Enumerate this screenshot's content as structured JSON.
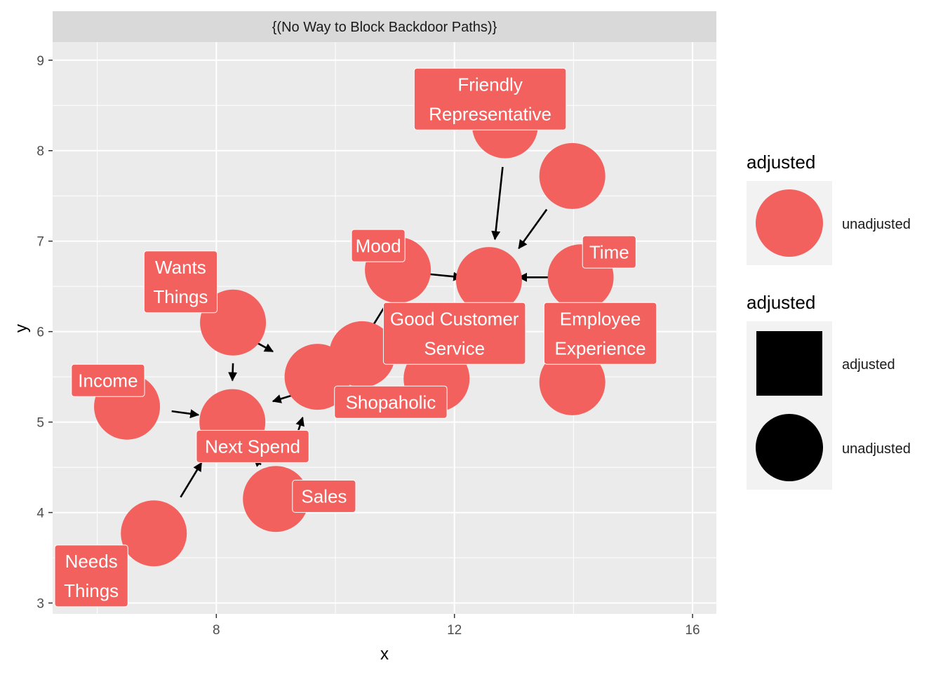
{
  "facet_title": "{(No Way to Block Backdoor Paths)}",
  "axes": {
    "xlabel": "x",
    "ylabel": "y",
    "x_range": [
      5.25,
      16.4
    ],
    "y_range": [
      2.88,
      9.2
    ],
    "x_ticks": [
      8,
      12,
      16
    ],
    "y_ticks": [
      3,
      4,
      5,
      6,
      7,
      8,
      9
    ],
    "x_minor": [
      6,
      10,
      14
    ],
    "y_minor": [
      3.5,
      4.5,
      5.5,
      6.5,
      7.5,
      8.5
    ],
    "grid": true
  },
  "colors": {
    "node": "#F2615E",
    "panel": "#EBEBEB",
    "strip": "#D9D9D9",
    "label_text": "#FFFFFF",
    "edge": "#000000"
  },
  "nodes": [
    {
      "id": "friendly",
      "label": "Friendly\nRepresentative",
      "x": 12.85,
      "y": 8.28
    },
    {
      "id": "employee",
      "label": "Employee\nExperience",
      "x": 13.98,
      "y": 7.72
    },
    {
      "id": "mood",
      "label": "Mood",
      "x": 11.05,
      "y": 6.68
    },
    {
      "id": "time",
      "label": "Time",
      "x": 14.12,
      "y": 6.6
    },
    {
      "id": "good",
      "label": "Good Customer\nService",
      "x": 12.58,
      "y": 6.57
    },
    {
      "id": "wants",
      "label": "Wants\nThings",
      "x": 8.28,
      "y": 6.1
    },
    {
      "id": "shopaholic",
      "label": "Shopaholic",
      "x": 10.45,
      "y": 5.75
    },
    {
      "id": "sales",
      "label": "Sales",
      "x": 9.7,
      "y": 5.5
    },
    {
      "id": "income",
      "label": "Income",
      "x": 6.5,
      "y": 5.17
    },
    {
      "id": "nextspend",
      "label": "Next Spend",
      "x": 8.27,
      "y": 5.0
    },
    {
      "id": "needs",
      "label": "Needs\nThings",
      "x": 6.95,
      "y": 3.77
    },
    {
      "id": "extra1",
      "label": "",
      "x": 11.7,
      "y": 5.48
    },
    {
      "id": "extra2",
      "label": "",
      "x": 13.98,
      "y": 5.44
    },
    {
      "id": "extra3",
      "label": "",
      "x": 9.0,
      "y": 4.15
    }
  ],
  "labels": [
    {
      "text": "Friendly\nRepresentative",
      "x": 12.6,
      "y": 8.57
    },
    {
      "text": "Employee\nExperience",
      "x": 14.45,
      "y": 5.98
    },
    {
      "text": "Mood",
      "x": 10.72,
      "y": 6.95
    },
    {
      "text": "Time",
      "x": 14.6,
      "y": 6.88
    },
    {
      "text": "Good Customer\nService",
      "x": 12.0,
      "y": 5.98
    },
    {
      "text": "Wants\nThings",
      "x": 7.4,
      "y": 6.55
    },
    {
      "text": "Shopaholic",
      "x": 10.93,
      "y": 5.22
    },
    {
      "text": "Sales",
      "x": 9.81,
      "y": 4.18
    },
    {
      "text": "Income",
      "x": 6.18,
      "y": 5.46
    },
    {
      "text": "Next Spend",
      "x": 8.61,
      "y": 4.73
    },
    {
      "text": "Needs\nThings",
      "x": 5.9,
      "y": 3.3
    }
  ],
  "edges": [
    {
      "from": [
        12.81,
        7.82
      ],
      "to": [
        12.68,
        7.02
      ]
    },
    {
      "from": [
        13.55,
        7.35
      ],
      "to": [
        13.08,
        6.92
      ]
    },
    {
      "from": [
        11.5,
        6.64
      ],
      "to": [
        12.12,
        6.6
      ]
    },
    {
      "from": [
        13.65,
        6.6
      ],
      "to": [
        13.08,
        6.6
      ]
    },
    {
      "from": [
        10.85,
        6.3
      ],
      "to": [
        10.55,
        5.98
      ]
    },
    {
      "from": [
        11.3,
        6.0
      ],
      "to": [
        11.05,
        5.88
      ]
    },
    {
      "from": [
        8.7,
        5.87
      ],
      "to": [
        8.95,
        5.78
      ]
    },
    {
      "from": [
        8.28,
        5.65
      ],
      "to": [
        8.27,
        5.46
      ]
    },
    {
      "from": [
        7.25,
        5.12
      ],
      "to": [
        7.7,
        5.08
      ]
    },
    {
      "from": [
        9.3,
        5.3
      ],
      "to": [
        8.95,
        5.23
      ]
    },
    {
      "from": [
        9.35,
        4.85
      ],
      "to": [
        9.45,
        5.05
      ]
    },
    {
      "from": [
        8.75,
        4.53
      ],
      "to": [
        8.63,
        4.6
      ]
    },
    {
      "from": [
        7.4,
        4.17
      ],
      "to": [
        7.75,
        4.55
      ]
    }
  ],
  "legend": [
    {
      "title": "adjusted",
      "items": [
        {
          "label": "unadjusted",
          "shape": "circle",
          "color": "#F2615E"
        }
      ]
    },
    {
      "title": "adjusted",
      "items": [
        {
          "label": "adjusted",
          "shape": "square",
          "color": "#000000"
        },
        {
          "label": "unadjusted",
          "shape": "circle",
          "color": "#000000"
        }
      ]
    }
  ]
}
